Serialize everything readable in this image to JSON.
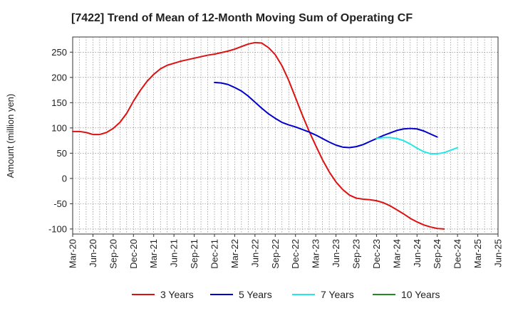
{
  "chart_data": {
    "type": "line",
    "title": "[7422]  Trend of Mean of 12-Month Moving Sum of Operating CF",
    "xlabel": "",
    "ylabel": "Amount (million yen)",
    "ylim": [
      -110,
      280
    ],
    "yticks": [
      250,
      200,
      150,
      100,
      50,
      0,
      -50,
      -100
    ],
    "x_ticks": [
      "Mar-20",
      "Jun-20",
      "Sep-20",
      "Dec-20",
      "Mar-21",
      "Jun-21",
      "Sep-21",
      "Dec-21",
      "Mar-22",
      "Jun-22",
      "Sep-22",
      "Dec-22",
      "Mar-23",
      "Jun-23",
      "Sep-23",
      "Dec-23",
      "Mar-24",
      "Jun-24",
      "Sep-24",
      "Dec-24",
      "Mar-25",
      "Jun-25"
    ],
    "grid": true,
    "legend_position": "bottom",
    "series": [
      {
        "name": "3 Years",
        "color": "#dd1111",
        "start_index": 0,
        "values": [
          93,
          93,
          91,
          87,
          87,
          91,
          99,
          111,
          129,
          153,
          174,
          192,
          206,
          217,
          224,
          228,
          232,
          235,
          238,
          241,
          244,
          246,
          249,
          252,
          256,
          261,
          266,
          269,
          268,
          259,
          245,
          223,
          194,
          160,
          126,
          94,
          65,
          37,
          13,
          -7,
          -22,
          -33,
          -39,
          -41,
          -42,
          -44,
          -48,
          -54,
          -62,
          -70,
          -79,
          -86,
          -92,
          -96,
          -99,
          -100
        ]
      },
      {
        "name": "5 Years",
        "color": "#0000cc",
        "start_index": 21,
        "values": [
          190,
          189,
          186,
          180,
          173,
          163,
          151,
          139,
          128,
          119,
          111,
          106,
          102,
          97,
          92,
          86,
          79,
          72,
          66,
          62,
          61,
          63,
          67,
          73,
          79,
          85,
          90,
          95,
          98,
          99,
          98,
          94,
          88,
          82
        ]
      },
      {
        "name": "7 Years",
        "color": "#22e8e8",
        "start_index": 45,
        "values": [
          79,
          81,
          81,
          79,
          75,
          68,
          60,
          53,
          49,
          49,
          51,
          56,
          61
        ]
      },
      {
        "name": "10 Years",
        "color": "#228b22",
        "start_index": 0,
        "values": []
      }
    ]
  }
}
